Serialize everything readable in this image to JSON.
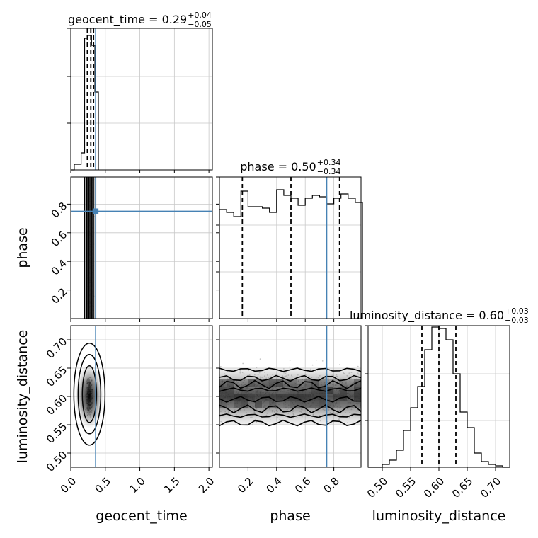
{
  "chart_data": {
    "type": "corner",
    "parameters": [
      "geocent_time",
      "phase",
      "luminosity_distance"
    ],
    "truth": {
      "geocent_time": 0.36,
      "phase": 0.75
    },
    "ranges": {
      "geocent_time": [
        0.0,
        2.05
      ],
      "phase": [
        0.0,
        0.99
      ],
      "luminosity_distance": [
        0.475,
        0.725
      ]
    },
    "ticks": {
      "geocent_time": [
        0.0,
        0.5,
        1.0,
        1.5,
        2.0
      ],
      "phase": [
        0.2,
        0.4,
        0.6,
        0.8
      ],
      "luminosity_distance": [
        0.5,
        0.55,
        0.6,
        0.65,
        0.7
      ]
    },
    "tick_labels": {
      "geocent_time": [
        "0.0",
        "0.5",
        "1.0",
        "1.5",
        "2.0"
      ],
      "phase": [
        "0.2",
        "0.4",
        "0.6",
        "0.8"
      ],
      "luminosity_distance": [
        "0.50",
        "0.55",
        "0.60",
        "0.65",
        "0.70"
      ]
    },
    "titles": [
      {
        "param": "geocent_time",
        "text": "geocent_time = 0.29",
        "upper": "+0.04",
        "lower": "−0.05"
      },
      {
        "param": "phase",
        "text": "phase = 0.50",
        "upper": "+0.34",
        "lower": "−0.34"
      },
      {
        "param": "luminosity_distance",
        "text": "luminosity_distance = 0.60",
        "upper": "+0.03",
        "lower": "−0.03"
      }
    ],
    "quantiles": {
      "geocent_time": [
        0.24,
        0.29,
        0.33
      ],
      "phase": [
        0.16,
        0.5,
        0.84
      ],
      "luminosity_distance": [
        0.57,
        0.6,
        0.63
      ]
    },
    "histograms": {
      "geocent_time": {
        "edges": [
          0.0,
          0.05,
          0.1,
          0.15,
          0.2,
          0.25,
          0.3,
          0.35,
          0.4
        ],
        "counts": [
          0.0,
          0.04,
          0.04,
          0.12,
          0.93,
          0.95,
          0.88,
          0.55
        ]
      },
      "phase": {
        "edges": [
          0.0,
          0.05,
          0.1,
          0.15,
          0.2,
          0.25,
          0.3,
          0.35,
          0.4,
          0.45,
          0.5,
          0.55,
          0.6,
          0.65,
          0.7,
          0.75,
          0.8,
          0.85,
          0.9,
          0.95,
          1.0
        ],
        "counts": [
          0.77,
          0.75,
          0.72,
          0.9,
          0.79,
          0.79,
          0.78,
          0.75,
          0.91,
          0.87,
          0.85,
          0.8,
          0.85,
          0.87,
          0.86,
          0.81,
          0.85,
          0.88,
          0.85,
          0.82
        ]
      },
      "luminosity_distance": {
        "edges": [
          0.475,
          0.4875,
          0.5,
          0.5125,
          0.525,
          0.5375,
          0.55,
          0.5625,
          0.575,
          0.5875,
          0.6,
          0.6125,
          0.625,
          0.6375,
          0.65,
          0.6625,
          0.675,
          0.6875,
          0.7,
          0.7125,
          0.725
        ],
        "counts": [
          0.0,
          0.0,
          0.02,
          0.05,
          0.12,
          0.26,
          0.42,
          0.57,
          0.83,
          0.99,
          0.98,
          0.9,
          0.66,
          0.39,
          0.28,
          0.1,
          0.04,
          0.02,
          0.01,
          0.0
        ]
      }
    },
    "xlabels": [
      "geocent_time",
      "phase",
      "luminosity_distance"
    ],
    "ylabels": [
      "",
      "phase",
      "luminosity_distance"
    ],
    "grid": true
  }
}
